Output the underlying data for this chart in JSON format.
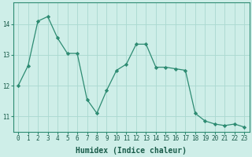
{
  "x": [
    0,
    1,
    2,
    3,
    4,
    5,
    6,
    7,
    8,
    9,
    10,
    11,
    12,
    13,
    14,
    15,
    16,
    17,
    18,
    19,
    20,
    21,
    22,
    23
  ],
  "y": [
    12.0,
    12.65,
    14.1,
    14.25,
    13.55,
    13.05,
    13.05,
    11.55,
    11.1,
    11.85,
    12.5,
    12.7,
    13.35,
    13.35,
    12.6,
    12.6,
    12.55,
    12.5,
    11.1,
    10.85,
    10.75,
    10.7,
    10.75,
    10.65
  ],
  "line_color": "#2d8b72",
  "marker": "D",
  "marker_size": 2.2,
  "bg_color": "#ceeee8",
  "grid_color": "#aad8d0",
  "xlabel": "Humidex (Indice chaleur)",
  "ylim": [
    10.5,
    14.7
  ],
  "xlim": [
    -0.5,
    23.5
  ],
  "yticks": [
    11,
    12,
    13,
    14
  ],
  "xticks": [
    0,
    1,
    2,
    3,
    4,
    5,
    6,
    7,
    8,
    9,
    10,
    11,
    12,
    13,
    14,
    15,
    16,
    17,
    18,
    19,
    20,
    21,
    22,
    23
  ],
  "tick_color": "#2d8b72",
  "label_color": "#1a5c4a",
  "tick_fontsize": 5.5,
  "xlabel_fontsize": 7.0,
  "linewidth": 0.9
}
